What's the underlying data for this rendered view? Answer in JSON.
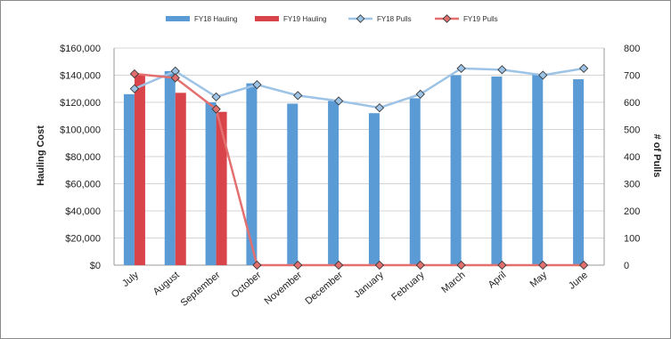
{
  "chart_data": {
    "type": "bar",
    "categories": [
      "July",
      "August",
      "September",
      "October",
      "November",
      "December",
      "January",
      "February",
      "March",
      "April",
      "May",
      "June"
    ],
    "series": [
      {
        "name": "FY18 Hauling",
        "kind": "bar",
        "axis": "left",
        "color": "#5b9bd5",
        "values": [
          126000,
          143000,
          120000,
          134000,
          119000,
          121000,
          112000,
          123000,
          140000,
          139000,
          141000,
          137000
        ]
      },
      {
        "name": "FY19 Hauling",
        "kind": "bar",
        "axis": "left",
        "color": "#d9434a",
        "values": [
          140000,
          127000,
          113000,
          null,
          null,
          null,
          null,
          null,
          null,
          null,
          null,
          null
        ]
      },
      {
        "name": "FY18 Pulls",
        "kind": "line",
        "axis": "right",
        "color": "#9dc3e6",
        "values": [
          650,
          715,
          620,
          665,
          625,
          605,
          580,
          630,
          725,
          720,
          700,
          725
        ]
      },
      {
        "name": "FY19 Pulls",
        "kind": "line",
        "axis": "right",
        "color": "#e36f6f",
        "values": [
          705,
          690,
          575,
          0,
          0,
          0,
          0,
          0,
          0,
          0,
          0,
          0
        ]
      }
    ],
    "ylabel": "Hauling Cost",
    "y2label": "# of Pulls",
    "ylim": [
      0,
      160000
    ],
    "y2lim": [
      0,
      800
    ],
    "yticks": [
      "$0",
      "$20,000",
      "$40,000",
      "$60,000",
      "$80,000",
      "$100,000",
      "$120,000",
      "$140,000",
      "$160,000"
    ],
    "y2ticks": [
      "0",
      "100",
      "200",
      "300",
      "400",
      "500",
      "600",
      "700",
      "800"
    ],
    "grid": true,
    "legend_position": "top"
  }
}
